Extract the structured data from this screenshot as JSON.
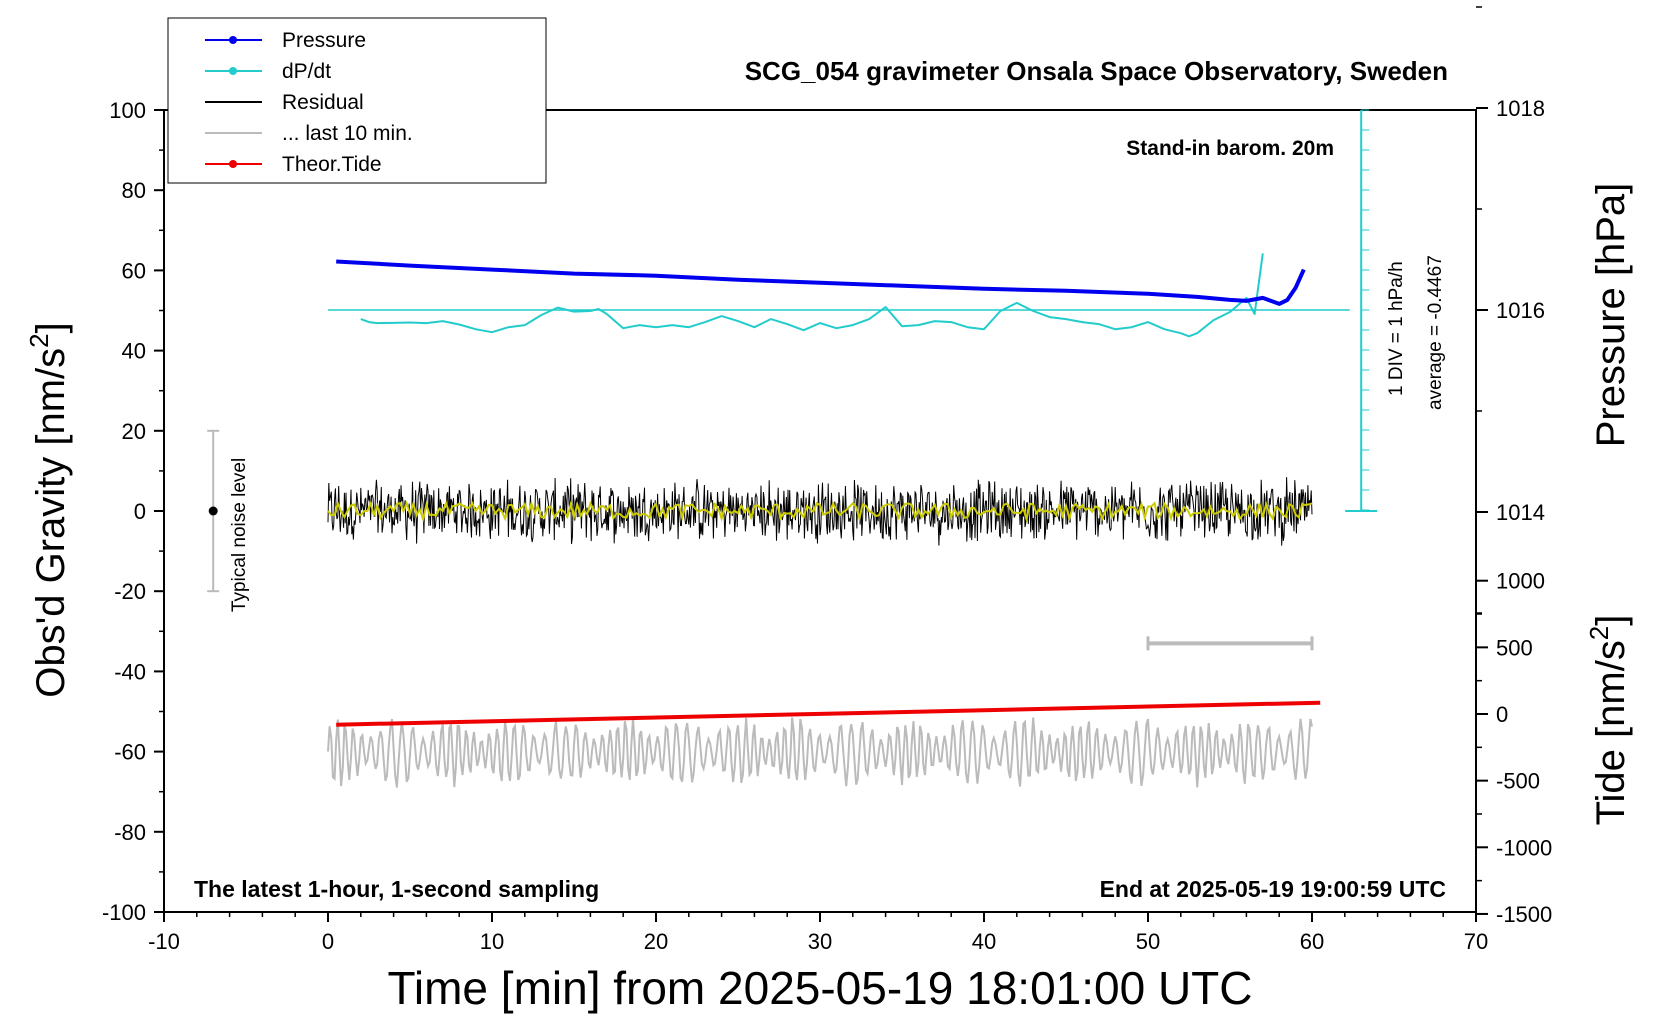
{
  "chart_data": {
    "type": "line",
    "title": "SCG_054 gravimeter Onsala Space Observatory, Sweden",
    "xlabel": "Time [min] from 2025-05-19 18:01:00 UTC",
    "ylabel_left": "Obs'd Gravity [nm/s",
    "ylabel_left_sup": "2",
    "ylabel_left_end": "]",
    "ylabel_right_top": "Pressure [hPa]",
    "ylabel_right_bottom": "Tide [nm/s",
    "ylabel_right_bottom_sup": "2",
    "ylabel_right_bottom_end": "]",
    "xlim": [
      -10,
      70
    ],
    "xticks": [
      -10,
      0,
      10,
      20,
      30,
      40,
      50,
      60,
      70
    ],
    "ylim": [
      -100,
      100
    ],
    "yticks": [
      -100,
      -80,
      -60,
      -40,
      -20,
      0,
      20,
      40,
      60,
      80,
      100
    ],
    "pressure_axis": {
      "ticks": [
        1014,
        1016,
        1018
      ],
      "range": [
        1012,
        1020
      ]
    },
    "tide_axis": {
      "ticks": [
        -1500,
        -1000,
        -500,
        0,
        500,
        1000
      ],
      "range": [
        -1500,
        1500
      ]
    },
    "annotations": {
      "stand_in": "Stand-in barom. 20m",
      "div_label": "1 DIV = 1 hPa/h",
      "average_label": "average = -0.4467",
      "noise_label": "Typical noise level",
      "bottom_left": "The latest 1-hour, 1-second sampling",
      "bottom_right": "End at 2025-05-19 19:00:59 UTC"
    },
    "legend": {
      "position": "top-left",
      "entries": [
        {
          "label": "Pressure",
          "color": "#0000ee",
          "marker": true
        },
        {
          "label": "dP/dt",
          "color": "#22cccc",
          "marker": true
        },
        {
          "label": "Residual",
          "color": "#000000",
          "marker": false
        },
        {
          "label": "... last 10 min.",
          "color": "#bbbbbb",
          "marker": false
        },
        {
          "label": "Theor.Tide",
          "color": "#ee0000",
          "marker": true
        }
      ]
    },
    "series": [
      {
        "name": "Pressure",
        "color": "#0000ee",
        "axis": "pressure",
        "x": [
          0.5,
          5,
          10,
          15,
          20,
          25,
          30,
          35,
          40,
          45,
          50,
          53,
          55,
          56,
          57,
          58,
          58.5,
          59,
          59.5
        ],
        "y": [
          1016.48,
          1016.44,
          1016.4,
          1016.36,
          1016.34,
          1016.3,
          1016.27,
          1016.24,
          1016.21,
          1016.19,
          1016.16,
          1016.13,
          1016.1,
          1016.09,
          1016.12,
          1016.06,
          1016.1,
          1016.22,
          1016.4
        ]
      },
      {
        "name": "dP/dt",
        "color": "#22cccc",
        "axis": "dpdt",
        "x": [
          2,
          2.5,
          3,
          4,
          5,
          6,
          7,
          8,
          9,
          10,
          11,
          12,
          13,
          14,
          15,
          16,
          16.5,
          17,
          18,
          19,
          20,
          21,
          22,
          23,
          24,
          25,
          26,
          27,
          28,
          29,
          30,
          31,
          32,
          33,
          34,
          35,
          36,
          37,
          38,
          39,
          40,
          41,
          42,
          43,
          44,
          45,
          46,
          47,
          48,
          49,
          50,
          51,
          52,
          52.5,
          53,
          54,
          55,
          56,
          56.5,
          57
        ],
        "y": [
          -0.45,
          -0.6,
          -0.65,
          -0.64,
          -0.62,
          -0.65,
          -0.55,
          -0.72,
          -0.95,
          -1.1,
          -0.85,
          -0.75,
          -0.25,
          0.12,
          -0.08,
          -0.05,
          0.05,
          -0.2,
          -0.9,
          -0.75,
          -0.85,
          -0.75,
          -0.85,
          -0.6,
          -0.3,
          -0.55,
          -0.85,
          -0.45,
          -0.7,
          -1.0,
          -0.65,
          -0.9,
          -0.75,
          -0.45,
          0.15,
          -0.8,
          -0.75,
          -0.55,
          -0.6,
          -0.85,
          -0.95,
          -0.05,
          0.35,
          -0.05,
          -0.35,
          -0.45,
          -0.6,
          -0.7,
          -0.95,
          -0.85,
          -0.6,
          -0.95,
          -1.15,
          -1.3,
          -1.15,
          -0.5,
          -0.1,
          0.6,
          -0.2,
          2.8
        ]
      },
      {
        "name": "Residual",
        "color": "#000000",
        "amplitude_nm_s2": 8,
        "x_range": [
          0,
          60
        ],
        "mean": 0
      },
      {
        "name": "... last 10 min.",
        "color": "#bbbbbb",
        "baseline": -60,
        "amplitude_nm_s2": 7,
        "x_range": [
          0,
          60
        ]
      },
      {
        "name": "Theor.Tide",
        "color": "#ee0000",
        "axis": "tide",
        "x": [
          0.5,
          60.5
        ],
        "y": [
          -80,
          85
        ]
      },
      {
        "name": "Residual (smoothed)",
        "color": "#cccc00",
        "amplitude_nm_s2": 2,
        "x_range": [
          0,
          60
        ]
      }
    ],
    "noise_bar": {
      "x": -7,
      "center": 0,
      "half_range": 20
    },
    "ten_min_bar": {
      "x_from": 50,
      "x_to": 60,
      "y": -33
    },
    "dpdt_scale": {
      "x": 63,
      "baseline_pressure": 1016,
      "div_hpa_per_h": 1,
      "range_divs": [
        -4,
        4
      ]
    }
  }
}
